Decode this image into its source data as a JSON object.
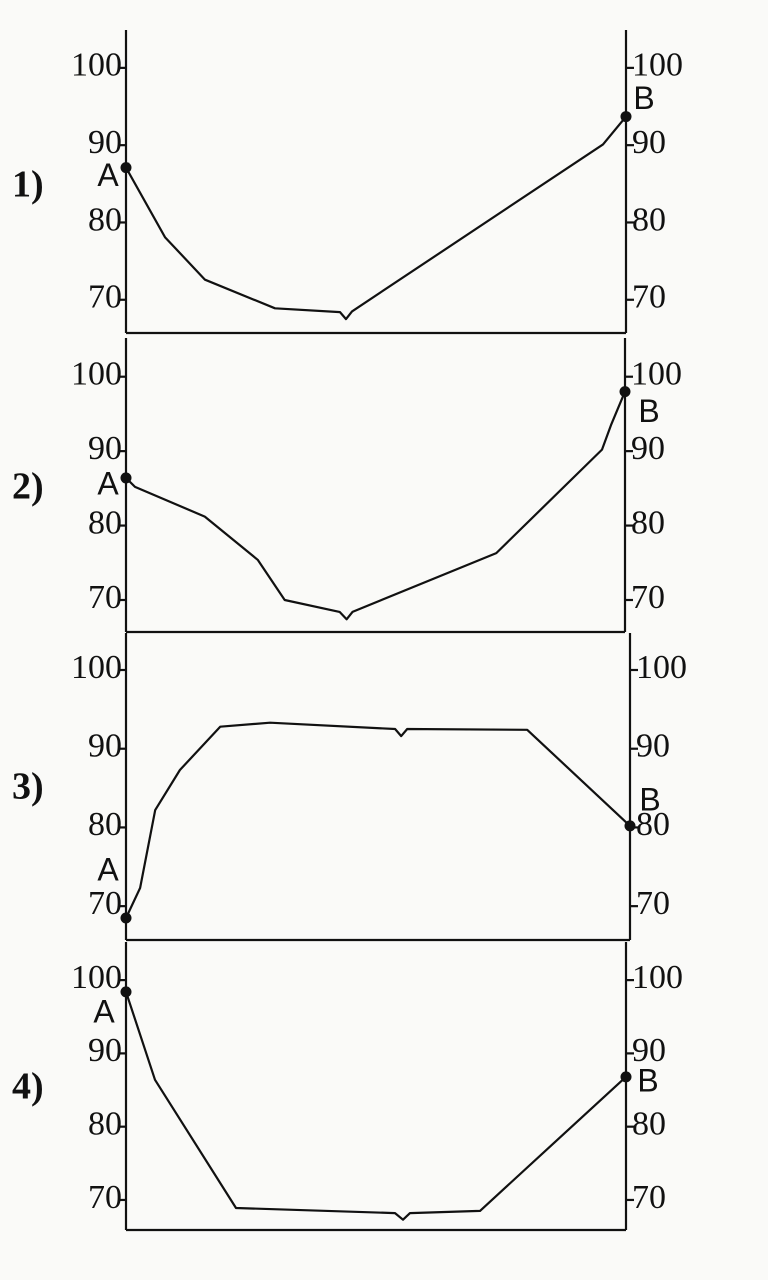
{
  "chart_data": [
    {
      "type": "line",
      "label": "1)",
      "color": "#111111",
      "x": [
        0,
        7.8,
        15.8,
        29.8,
        42.8,
        44,
        45.2,
        95.4,
        100
      ],
      "values": [
        87.1,
        78.1,
        72.6,
        68.9,
        68.4,
        67.5,
        68.5,
        90.1,
        93.7
      ],
      "xlim": [
        0,
        100
      ],
      "ylim": [
        65.7,
        104.9
      ],
      "yticks": [
        70,
        80,
        90,
        100
      ],
      "y2lim": [
        65.7,
        104.9
      ],
      "y2ticks": [
        70,
        80,
        90,
        100
      ],
      "points": [
        {
          "label": "A",
          "x": 0,
          "y": 87.1
        },
        {
          "label": "B",
          "x": 100,
          "y": 93.7
        }
      ]
    },
    {
      "type": "line",
      "label": "2)",
      "color": "#111111",
      "x": [
        0,
        1.8,
        15.8,
        26.4,
        31.8,
        42.8,
        44.2,
        45.4,
        74.2,
        95.4,
        97.2,
        100
      ],
      "values": [
        86.4,
        85.2,
        81.2,
        75.4,
        70,
        68.4,
        67.4,
        68.4,
        76.3,
        90.2,
        93.5,
        98
      ],
      "xlim": [
        0,
        100
      ],
      "ylim": [
        65.7,
        105.2
      ],
      "yticks": [
        70,
        80,
        90,
        100
      ],
      "y2lim": [
        65.7,
        105.2
      ],
      "y2ticks": [
        70,
        80,
        90,
        100
      ],
      "points": [
        {
          "label": "A",
          "x": 0,
          "y": 86.4
        },
        {
          "label": "B",
          "x": 100,
          "y": 98
        }
      ]
    },
    {
      "type": "line",
      "label": "3)",
      "color": "#111111",
      "x": [
        0,
        2.8,
        5.8,
        10.7,
        18.7,
        28.6,
        53.4,
        54.6,
        55.8,
        79.6,
        100
      ],
      "values": [
        68.5,
        72.3,
        82.2,
        87.3,
        92.8,
        93.3,
        92.5,
        91.6,
        92.5,
        92.4,
        80.2
      ],
      "xlim": [
        0,
        100
      ],
      "ylim": [
        65.7,
        104.7
      ],
      "yticks": [
        70,
        80,
        90,
        100
      ],
      "y2lim": [
        65.7,
        104.7
      ],
      "y2ticks": [
        70,
        80,
        90,
        100
      ],
      "points": [
        {
          "label": "A",
          "x": 0,
          "y": 68.5
        },
        {
          "label": "B",
          "x": 100,
          "y": 80.2
        }
      ]
    },
    {
      "type": "line",
      "label": "4)",
      "color": "#111111",
      "x": [
        0,
        5.8,
        22,
        53.8,
        55.4,
        56.8,
        70.8,
        100
      ],
      "values": [
        98.4,
        86.4,
        68.9,
        68.2,
        67.3,
        68.2,
        68.5,
        86.8
      ],
      "xlim": [
        0,
        100
      ],
      "ylim": [
        65.9,
        105.2
      ],
      "yticks": [
        70,
        80,
        90,
        100
      ],
      "y2lim": [
        65.9,
        105.2
      ],
      "y2ticks": [
        70,
        80,
        90,
        100
      ],
      "points": [
        {
          "label": "A",
          "x": 0,
          "y": 98.4
        },
        {
          "label": "B",
          "x": 100,
          "y": 86.8
        }
      ]
    }
  ]
}
